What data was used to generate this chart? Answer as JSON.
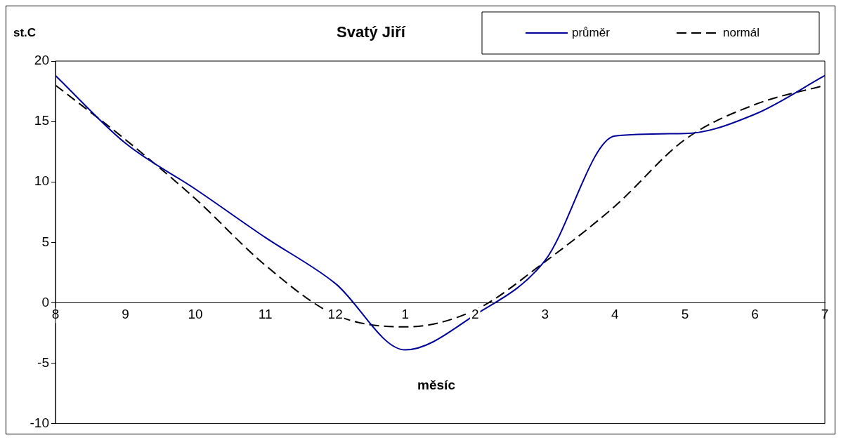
{
  "chart_data": {
    "type": "line",
    "title": "Svatý Jiří",
    "xlabel": "měsíc",
    "ylabel": "st.C",
    "categories": [
      "8",
      "9",
      "10",
      "11",
      "12",
      "1",
      "2",
      "3",
      "4",
      "5",
      "6",
      "7"
    ],
    "series": [
      {
        "name": "průměr",
        "color": "#000099",
        "line_style": "solid",
        "values": [
          18.8,
          13.2,
          9.4,
          5.4,
          1.6,
          -3.9,
          -1.0,
          3.5,
          13.8,
          14.0,
          15.6,
          18.8
        ]
      },
      {
        "name": "normál",
        "color": "#000000",
        "line_style": "dashed",
        "values": [
          18.0,
          13.5,
          8.6,
          3.1,
          -1.0,
          -2.0,
          -0.6,
          3.4,
          8.0,
          13.5,
          16.4,
          18.0
        ]
      }
    ],
    "ylim": [
      -10,
      20
    ],
    "yticks": [
      -10,
      -5,
      0,
      5,
      10,
      15,
      20
    ],
    "grid": false,
    "legend": "top right",
    "marker": "none"
  }
}
